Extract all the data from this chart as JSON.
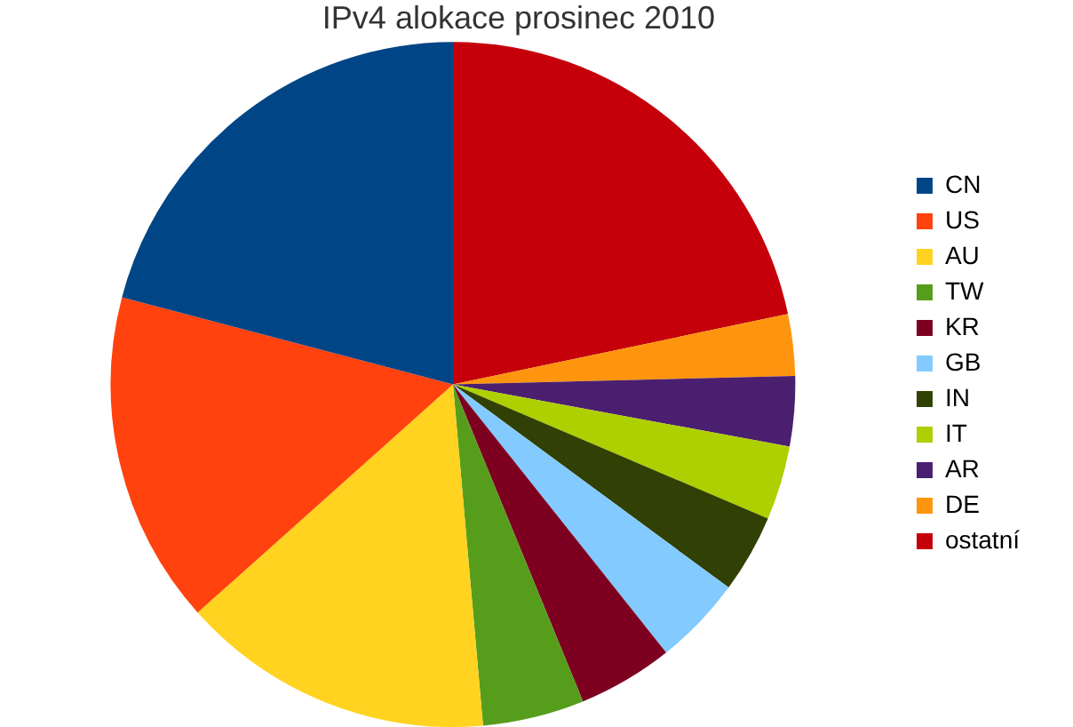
{
  "chart_data": {
    "type": "pie",
    "title": "IPv4 alokace prosinec 2010",
    "categories": [
      "CN",
      "US",
      "AU",
      "TW",
      "KR",
      "GB",
      "IN",
      "IT",
      "AR",
      "DE",
      "ostatní"
    ],
    "values": [
      20.9,
      15.7,
      14.8,
      4.8,
      4.5,
      4.2,
      3.7,
      3.5,
      3.3,
      2.9,
      21.7
    ],
    "colors": [
      "#004586",
      "#ff420e",
      "#ffd320",
      "#579d1c",
      "#7e0021",
      "#83caff",
      "#314004",
      "#aecf00",
      "#4b1f6f",
      "#ff950e",
      "#c5000b"
    ],
    "legend": "right"
  }
}
